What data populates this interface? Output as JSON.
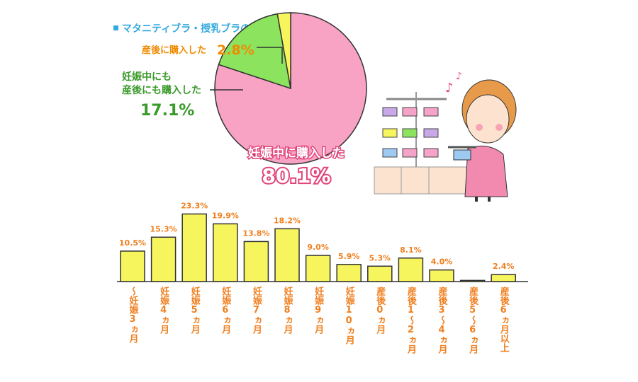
{
  "chart_data": [
    {
      "type": "pie",
      "title": "マタニティブラ・授乳ブラの購入時期",
      "categories": [
        "妊娠中に購入した",
        [
          "妊娠中にも",
          "産後にも購入した"
        ],
        "産後に購入した"
      ],
      "values": [
        80.1,
        17.1,
        2.8
      ],
      "value_labels": [
        "80.1%",
        "17.1%",
        "2.8%"
      ],
      "colors": [
        "#f9a3c4",
        "#8be35e",
        "#f7f55e"
      ]
    },
    {
      "type": "bar",
      "categories": [
        "～妊娠3ヵ月",
        "妊娠4ヵ月",
        "妊娠5ヵ月",
        "妊娠6ヵ月",
        "妊娠7ヵ月",
        "妊娠8ヵ月",
        "妊娠9ヵ月",
        "妊娠10ヵ月",
        "産後0ヵ月",
        "産後1～2ヵ月",
        "産後3～4ヵ月",
        "産後5～6ヵ月",
        "産後6ヵ月以上"
      ],
      "values": [
        10.5,
        15.3,
        23.3,
        19.9,
        13.8,
        18.2,
        9.0,
        5.9,
        5.3,
        8.1,
        4.0,
        0.4,
        2.4
      ],
      "value_labels": [
        "10.5%",
        "15.3%",
        "23.3%",
        "19.9%",
        "13.8%",
        "18.2%",
        "9.0%",
        "5.9%",
        "5.3%",
        "8.1%",
        "4.0%",
        null,
        "2.4%"
      ],
      "color": "#f7f55e"
    }
  ]
}
